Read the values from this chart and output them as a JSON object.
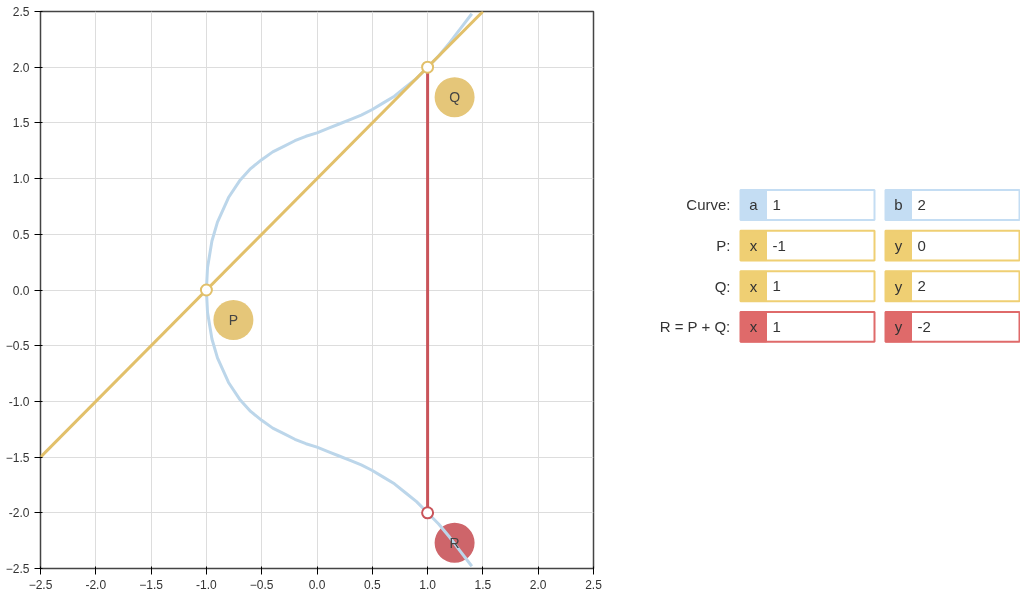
{
  "chart_data": [
    {
      "type": "line",
      "xlim": [
        -2.5,
        2.5
      ],
      "ylim": [
        -2.5,
        2.5
      ],
      "xticks": [
        -2.5,
        {
          "value": -2,
          "label": "-2.0"
        },
        -1.5,
        {
          "value": -1,
          "label": "-1.0"
        },
        -0.5,
        {
          "value": 0,
          "label": "0.0"
        },
        0.5,
        {
          "value": 1,
          "label": "1.0"
        },
        1.5,
        {
          "value": 2,
          "label": "2.0"
        },
        2.5
      ],
      "yticks": [
        -2.5,
        {
          "value": -2,
          "label": "-2.0"
        },
        -1.5,
        {
          "value": -1,
          "label": "-1.0"
        },
        -0.5,
        {
          "value": 0,
          "label": "0.0"
        },
        0.5,
        {
          "value": 1,
          "label": "1.0"
        },
        1.5,
        {
          "value": 2,
          "label": "2.0"
        },
        2.5
      ],
      "grid": true,
      "series": [
        {
          "type": "line",
          "marker": "none",
          "color": "#bcd6ea",
          "x": [
            1.4,
            1.3,
            1.2,
            1.1,
            1.0,
            0.9,
            0.8,
            0.7,
            0.6,
            0.5,
            0.4,
            0.3,
            0.2,
            0.1,
            0,
            -0.1,
            -0.2,
            -0.3,
            -0.4,
            -0.5,
            -0.6,
            -0.7,
            -0.8,
            -0.9,
            -0.95,
            -0.99,
            -1,
            -0.99,
            -0.95,
            -0.9,
            -0.8,
            -0.7,
            -0.6,
            -0.5,
            -0.4,
            -0.3,
            -0.2,
            -0.1,
            0,
            0.1,
            0.2,
            0.3,
            0.4,
            0.5,
            0.6,
            0.7,
            0.8,
            0.9,
            1.0,
            1.1,
            1.2,
            1.3,
            1.4
          ],
          "values": [
            2.48,
            2.35,
            2.22,
            2.1,
            2.0,
            1.9,
            1.82,
            1.74,
            1.68,
            1.62,
            1.57,
            1.53,
            1.49,
            1.45,
            1.41,
            1.38,
            1.34,
            1.29,
            1.24,
            1.17,
            1.09,
            0.98,
            0.83,
            0.61,
            0.44,
            0.2,
            0,
            -0.2,
            -0.44,
            -0.61,
            -0.83,
            -0.98,
            -1.09,
            -1.17,
            -1.24,
            -1.29,
            -1.34,
            -1.38,
            -1.41,
            -1.45,
            -1.49,
            -1.53,
            -1.57,
            -1.62,
            -1.68,
            -1.74,
            -1.82,
            -1.9,
            -2.0,
            -2.1,
            -2.22,
            -2.35,
            -2.48
          ]
        },
        {
          "type": "line",
          "marker": "none",
          "color": "#e2c06a",
          "x": [
            -2.5,
            1.5
          ],
          "values": [
            -1.5,
            2.5
          ]
        },
        {
          "type": "line",
          "marker": "none",
          "color": "#c9545a",
          "x": [
            1,
            1
          ],
          "values": [
            2,
            -2
          ]
        },
        {
          "type": "scatter",
          "marker": "circle",
          "colors": [
            "#e2c06a",
            "#e2c06a",
            "#c9545a"
          ],
          "x": [
            -1,
            1,
            1
          ],
          "values": [
            0,
            2,
            -2
          ]
        }
      ],
      "annotations": [
        "P",
        "Q",
        "R"
      ]
    },
    {
      "type": "other",
      "colors": [
        "#c4ddf3",
        "#efcf73",
        "#efcf73",
        "#df6a6a"
      ],
      "annotations": [
        "Curve:",
        "a",
        "1",
        "b",
        "2",
        "P:",
        "x",
        "-1",
        "y",
        "0",
        "Q:",
        "x",
        "1",
        "y",
        "2",
        "R = P + Q:",
        "x",
        "1",
        "y",
        "-2"
      ]
    }
  ]
}
